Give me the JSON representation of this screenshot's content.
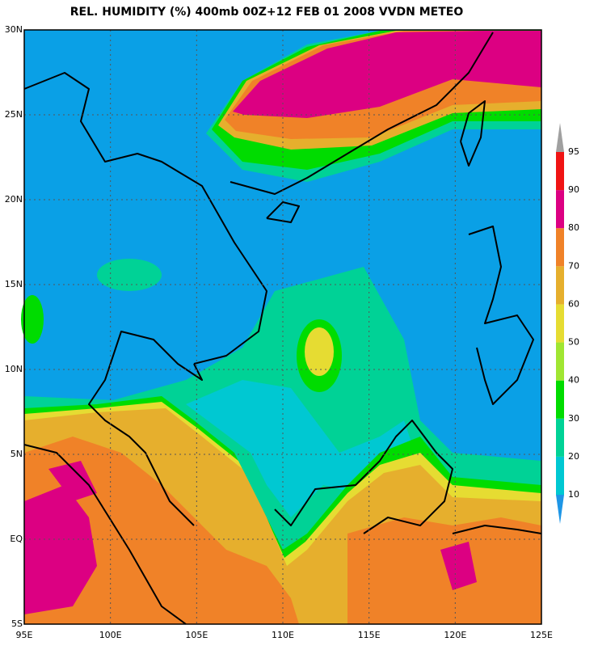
{
  "map": {
    "title": "REL. HUMIDITY (%) 400mb 00Z+12 FEB 01 2008 VVDN METEO",
    "lon_range": [
      95,
      125
    ],
    "lat_range": [
      -5,
      30
    ],
    "lon_ticks": [
      {
        "value": 95,
        "label": "95E"
      },
      {
        "value": 100,
        "label": "100E"
      },
      {
        "value": 105,
        "label": "105E"
      },
      {
        "value": 110,
        "label": "110E"
      },
      {
        "value": 115,
        "label": "115E"
      },
      {
        "value": 120,
        "label": "120E"
      },
      {
        "value": 125,
        "label": "125E"
      }
    ],
    "lat_ticks": [
      {
        "value": -5,
        "label": "5S"
      },
      {
        "value": 0,
        "label": "EQ"
      },
      {
        "value": 5,
        "label": "5N"
      },
      {
        "value": 10,
        "label": "10N"
      },
      {
        "value": 15,
        "label": "15N"
      },
      {
        "value": 20,
        "label": "20N"
      },
      {
        "value": 25,
        "label": "25N"
      },
      {
        "value": 30,
        "label": "30N"
      }
    ],
    "colorbar": {
      "levels": [
        10,
        20,
        30,
        40,
        50,
        60,
        70,
        80,
        90,
        95
      ],
      "colors": [
        "#1e96e6",
        "#00c8d2",
        "#00d296",
        "#00dc00",
        "#a0e632",
        "#e6dc32",
        "#e6af2d",
        "#f08228",
        "#dc0082",
        "#f01414",
        "#a0a0a0"
      ]
    }
  }
}
